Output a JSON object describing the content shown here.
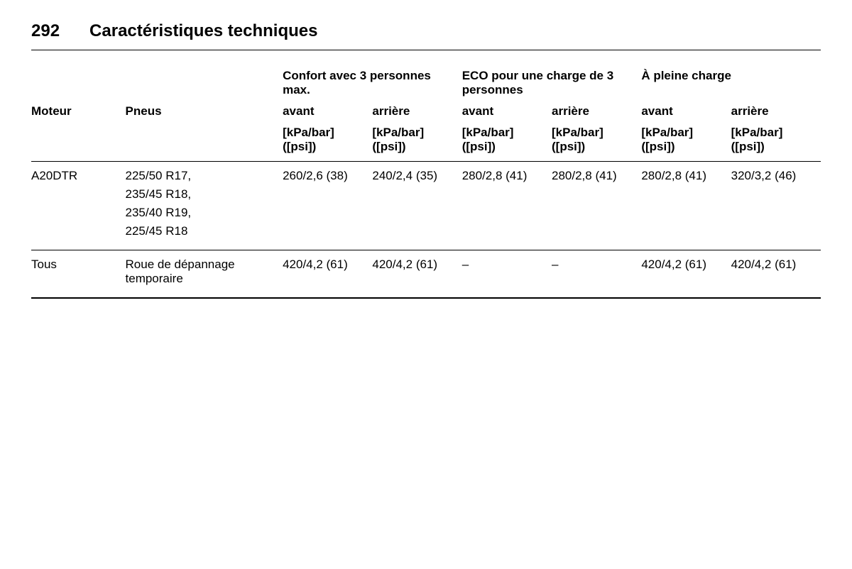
{
  "header": {
    "page_number": "292",
    "title": "Caractéristiques techniques"
  },
  "table": {
    "columns": {
      "moteur": "Moteur",
      "pneus": "Pneus",
      "groups": [
        {
          "label": "Confort avec 3 personnes max.",
          "front": "avant",
          "rear": "arrière"
        },
        {
          "label": "ECO pour une charge de 3 personnes",
          "front": "avant",
          "rear": "arrière"
        },
        {
          "label": "À pleine charge",
          "front": "avant",
          "rear": "arrière"
        }
      ],
      "unit": "[kPa/bar] ([psi])"
    },
    "rows": [
      {
        "moteur": "A20DTR",
        "pneus": [
          "225/50 R17,",
          "235/45 R18,",
          "235/40 R19,",
          "225/45 R18"
        ],
        "values": [
          "260/2,6 (38)",
          "240/2,4 (35)",
          "280/2,8 (41)",
          "280/2,8 (41)",
          "280/2,8 (41)",
          "320/3,2 (46)"
        ]
      },
      {
        "moteur": "Tous",
        "pneus": [
          "Roue de dépannage temporaire"
        ],
        "values": [
          "420/4,2 (61)",
          "420/4,2 (61)",
          "–",
          "–",
          "420/4,2 (61)",
          "420/4,2 (61)"
        ]
      }
    ]
  }
}
